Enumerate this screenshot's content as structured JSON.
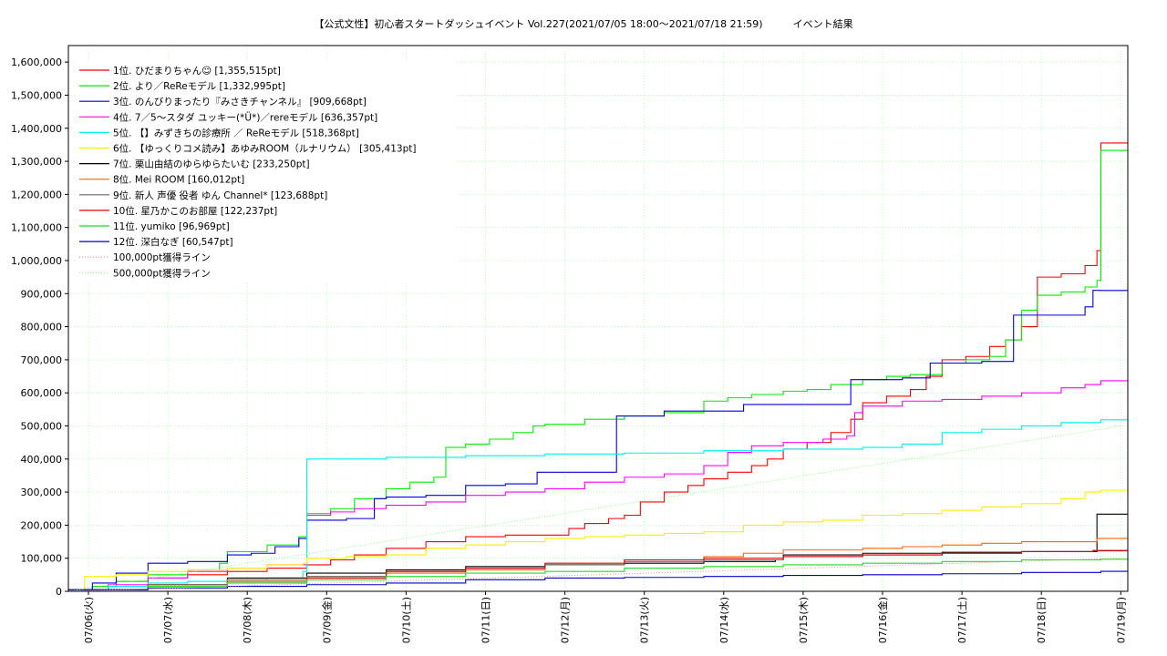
{
  "chart_data": {
    "type": "line",
    "title": "【公式文性】初心者スタートダッシュイベント Vol.227(2021/07/05 18:00〜2021/07/18 21:59)　　　イベント結果",
    "xlabel": "",
    "ylabel": "",
    "ylim": [
      0,
      1650000
    ],
    "xlim": [
      "07/05 18:00",
      "07/19 00:00"
    ],
    "y_ticks": [
      0,
      100000,
      200000,
      300000,
      400000,
      500000,
      600000,
      700000,
      800000,
      900000,
      1000000,
      1100000,
      1200000,
      1300000,
      1400000,
      1500000,
      1600000
    ],
    "y_tick_labels": [
      "0",
      "100,000",
      "200,000",
      "300,000",
      "400,000",
      "500,000",
      "600,000",
      "700,000",
      "800,000",
      "900,000",
      "1,000,000",
      "1,100,000",
      "1,200,000",
      "1,300,000",
      "1,400,000",
      "1,500,000",
      "1,600,000"
    ],
    "x_tick_labels": [
      "07/06(火)",
      "07/07(水)",
      "07/08(木)",
      "07/09(金)",
      "07/10(土)",
      "07/11(日)",
      "07/12(月)",
      "07/13(火)",
      "07/14(水)",
      "07/15(木)",
      "07/16(金)",
      "07/17(土)",
      "07/18(日)",
      "07/19(月)"
    ],
    "grid": true,
    "legend_position": "top-left",
    "series": [
      {
        "name": "1位. ひだまりちゃん☺ [1,355,515pt]",
        "color": "#ff0000",
        "x": [
          0,
          0.3,
          0.6,
          1.0,
          1.5,
          2.0,
          2.5,
          3.0,
          3.3,
          3.6,
          4.0,
          4.5,
          5.0,
          5.5,
          6.0,
          6.3,
          6.5,
          6.8,
          7.0,
          7.2,
          7.5,
          7.8,
          8.0,
          8.3,
          8.6,
          8.8,
          9.0,
          9.3,
          9.6,
          9.85,
          10.0,
          10.3,
          10.6,
          10.8,
          11.0,
          11.3,
          11.6,
          11.8,
          12.0,
          12.2,
          12.5,
          12.8,
          12.95,
          13.0
        ],
        "y": [
          5000,
          15000,
          30000,
          40000,
          50000,
          60000,
          70000,
          80000,
          95000,
          110000,
          130000,
          150000,
          165000,
          170000,
          170000,
          190000,
          205000,
          220000,
          230000,
          270000,
          300000,
          320000,
          340000,
          360000,
          380000,
          400000,
          430000,
          450000,
          480000,
          520000,
          570000,
          590000,
          610000,
          650000,
          700000,
          710000,
          740000,
          760000,
          800000,
          950000,
          960000,
          985000,
          1030000,
          1355515
        ]
      },
      {
        "name": "2位. より／ReReモデル [1,332,995pt]",
        "color": "#00ee00",
        "x": [
          0,
          0.3,
          0.6,
          1.0,
          1.5,
          1.9,
          2.0,
          2.5,
          2.9,
          3.0,
          3.3,
          3.6,
          4.0,
          4.3,
          4.6,
          4.75,
          5.0,
          5.3,
          5.6,
          5.85,
          6.0,
          6.5,
          7.0,
          7.5,
          8.0,
          8.3,
          8.6,
          9.0,
          9.3,
          9.6,
          10.0,
          10.3,
          10.6,
          11.0,
          11.3,
          11.6,
          11.8,
          12.0,
          12.2,
          12.5,
          12.8,
          12.95,
          13.0
        ],
        "y": [
          5000,
          15000,
          30000,
          50000,
          65000,
          85000,
          120000,
          140000,
          165000,
          235000,
          250000,
          280000,
          310000,
          330000,
          345000,
          435000,
          445000,
          460000,
          480000,
          500000,
          505000,
          520000,
          530000,
          540000,
          575000,
          585000,
          595000,
          605000,
          610000,
          625000,
          640000,
          650000,
          655000,
          690000,
          700000,
          710000,
          760000,
          850000,
          895000,
          905000,
          920000,
          940000,
          1332995
        ]
      },
      {
        "name": "3位. のんびりまったり『みさきチャンネル』 [909,668pt]",
        "color": "#0000dd",
        "x": [
          0,
          0.3,
          0.6,
          1.0,
          1.5,
          2.0,
          2.3,
          2.6,
          2.9,
          3.0,
          3.5,
          3.85,
          4.0,
          4.5,
          5.0,
          5.5,
          5.9,
          6.0,
          6.5,
          6.9,
          7.0,
          7.5,
          8.0,
          8.5,
          9.0,
          9.5,
          9.85,
          10.0,
          10.5,
          10.85,
          11.0,
          11.5,
          11.8,
          11.9,
          12.0,
          12.5,
          12.8,
          12.9,
          13.0
        ],
        "y": [
          5000,
          25000,
          55000,
          85000,
          90000,
          110000,
          115000,
          135000,
          160000,
          215000,
          220000,
          280000,
          285000,
          290000,
          320000,
          325000,
          360000,
          360000,
          360000,
          530000,
          530000,
          545000,
          545000,
          565000,
          565000,
          565000,
          640000,
          640000,
          645000,
          690000,
          690000,
          695000,
          695000,
          835000,
          835000,
          835000,
          860000,
          910000,
          909668
        ]
      },
      {
        "name": "4位. 7／5〜スタダ ユッキー(*Ü*)／rereモデル [636,357pt]",
        "color": "#ff00ff",
        "x": [
          0,
          0.5,
          1.0,
          1.5,
          2.0,
          2.5,
          3.0,
          3.3,
          3.6,
          4.0,
          4.5,
          5.0,
          5.5,
          6.0,
          6.5,
          7.0,
          7.5,
          8.0,
          8.3,
          8.6,
          9.0,
          9.5,
          9.8,
          9.9,
          10.0,
          10.5,
          11.0,
          11.5,
          12.0,
          12.5,
          12.8,
          13.0
        ],
        "y": [
          5000,
          20000,
          40000,
          60000,
          70000,
          80000,
          230000,
          240000,
          250000,
          260000,
          270000,
          290000,
          300000,
          310000,
          330000,
          345000,
          355000,
          380000,
          420000,
          440000,
          450000,
          460000,
          470000,
          540000,
          560000,
          575000,
          580000,
          590000,
          600000,
          615000,
          625000,
          636357
        ]
      },
      {
        "name": "5位. 【】みずきちの診療所 ／ ReReモデル [518,368pt]",
        "color": "#00eeee",
        "x": [
          0,
          0.5,
          1.0,
          1.5,
          2.0,
          2.5,
          2.95,
          3.0,
          4.0,
          5.0,
          6.0,
          7.0,
          8.0,
          9.0,
          10.0,
          10.5,
          11.0,
          11.5,
          12.0,
          12.5,
          13.0
        ],
        "y": [
          5000,
          15000,
          25000,
          30000,
          35000,
          40000,
          60000,
          400000,
          405000,
          410000,
          415000,
          418000,
          425000,
          430000,
          435000,
          445000,
          480000,
          490000,
          500000,
          510000,
          518368
        ]
      },
      {
        "name": "6位. 【ゆっくりコメ読み】あゆみROOM（ルナリウム） [305,413pt]",
        "color": "#ffee00",
        "x": [
          0,
          0.2,
          0.6,
          1.0,
          1.5,
          2.0,
          2.5,
          2.95,
          3.0,
          3.5,
          4.0,
          4.5,
          5.0,
          5.5,
          6.0,
          6.5,
          7.0,
          7.5,
          8.0,
          8.5,
          9.0,
          9.5,
          10.0,
          10.5,
          11.0,
          11.5,
          12.0,
          12.5,
          12.8,
          13.0
        ],
        "y": [
          5000,
          45000,
          50000,
          60000,
          65000,
          70000,
          80000,
          85000,
          100000,
          105000,
          110000,
          130000,
          140000,
          150000,
          160000,
          165000,
          170000,
          175000,
          180000,
          200000,
          210000,
          215000,
          230000,
          235000,
          245000,
          255000,
          265000,
          280000,
          300000,
          305413
        ]
      },
      {
        "name": "7位. 栗山由結のゆらゆらたいむ [233,250pt]",
        "color": "#000000",
        "x": [
          0,
          1.0,
          2.0,
          3.0,
          4.0,
          5.0,
          6.0,
          7.0,
          8.0,
          8.9,
          9.0,
          10.0,
          11.0,
          12.0,
          12.9,
          12.95,
          13.0
        ],
        "y": [
          5000,
          20000,
          40000,
          55000,
          65000,
          75000,
          80000,
          85000,
          90000,
          95000,
          110000,
          115000,
          118000,
          120000,
          120000,
          233250,
          233250
        ]
      },
      {
        "name": "8位. Mei ROOM [160,012pt]",
        "color": "#ff6600",
        "x": [
          0,
          1.0,
          2.0,
          3.0,
          4.0,
          5.0,
          6.0,
          7.0,
          8.0,
          8.5,
          9.0,
          10.0,
          10.5,
          11.0,
          11.5,
          12.0,
          12.9,
          12.95,
          13.0
        ],
        "y": [
          5000,
          20000,
          35000,
          45000,
          55000,
          65000,
          80000,
          95000,
          105000,
          115000,
          125000,
          130000,
          135000,
          140000,
          145000,
          150000,
          150000,
          160012,
          160012
        ]
      },
      {
        "name": "9位. 新人 声優 役者 ゆん Channel* [123,688pt]",
        "color": "#666666",
        "x": [
          0,
          1.0,
          2.0,
          3.0,
          4.0,
          5.0,
          6.0,
          7.0,
          8.0,
          9.0,
          10.0,
          11.0,
          12.0,
          12.9,
          13.0
        ],
        "y": [
          5000,
          20000,
          30000,
          45000,
          60000,
          70000,
          80000,
          90000,
          95000,
          105000,
          110000,
          115000,
          120000,
          123688,
          123688
        ]
      },
      {
        "name": "10位. 星乃かこのお部屋 [122,237pt]",
        "color": "#dd0000",
        "x": [
          0,
          1.0,
          2.0,
          3.0,
          4.0,
          5.0,
          6.0,
          7.0,
          8.0,
          9.0,
          10.0,
          11.0,
          12.0,
          12.9,
          13.0
        ],
        "y": [
          5000,
          15000,
          25000,
          40000,
          60000,
          70000,
          85000,
          95000,
          100000,
          105000,
          110000,
          115000,
          120000,
          122237,
          122237
        ]
      },
      {
        "name": "11位. yumiko [96,969pt]",
        "color": "#22dd22",
        "x": [
          0,
          1.0,
          2.0,
          3.0,
          4.0,
          5.0,
          6.0,
          7.0,
          8.0,
          9.0,
          10.0,
          11.0,
          12.0,
          13.0
        ],
        "y": [
          5000,
          15000,
          25000,
          35000,
          45000,
          55000,
          60000,
          70000,
          75000,
          80000,
          85000,
          90000,
          95000,
          96969
        ]
      },
      {
        "name": "12位. 深白なぎ [60,547pt]",
        "color": "#0000cc",
        "x": [
          0,
          1.0,
          2.0,
          3.0,
          4.0,
          5.0,
          6.0,
          7.0,
          8.0,
          9.0,
          10.0,
          11.0,
          12.0,
          13.0
        ],
        "y": [
          5000,
          10000,
          15000,
          20000,
          25000,
          35000,
          40000,
          42000,
          45000,
          48000,
          50000,
          53000,
          57000,
          60547
        ]
      },
      {
        "name": "100,000pt獲得ライン",
        "color": "#ff8080",
        "dashed": true,
        "x": [
          0,
          13.25
        ],
        "y": [
          0,
          100000
        ]
      },
      {
        "name": "500,000pt獲得ライン",
        "color": "#80ff80",
        "dashed": true,
        "x": [
          0,
          13.25
        ],
        "y": [
          0,
          500000
        ]
      }
    ]
  }
}
